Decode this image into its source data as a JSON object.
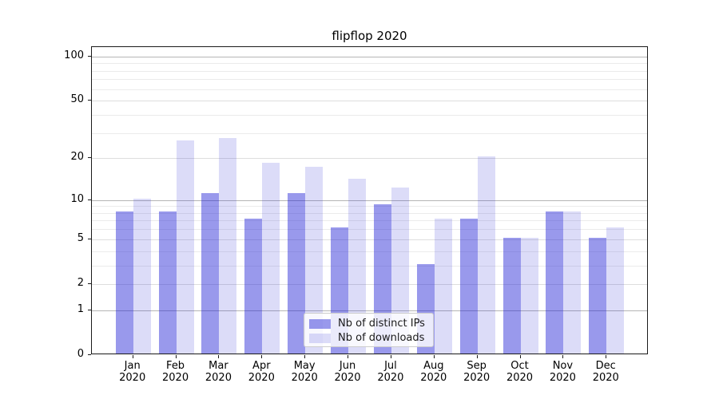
{
  "chart_data": {
    "type": "bar",
    "title": "flipflop 2020",
    "categories": [
      "Jan",
      "Feb",
      "Mar",
      "Apr",
      "May",
      "Jun",
      "Jul",
      "Aug",
      "Sep",
      "Oct",
      "Nov",
      "Dec"
    ],
    "year_label": "2020",
    "series": [
      {
        "name": "Nb of distinct IPs",
        "base_color": "#1c1cd5",
        "alpha": 0.45,
        "values": [
          8,
          8,
          11,
          7,
          11,
          6,
          9,
          3,
          7,
          5,
          8,
          5
        ]
      },
      {
        "name": "Nb of downloads",
        "base_color": "#2424d3",
        "alpha": 0.16,
        "values": [
          10,
          26,
          27,
          18,
          17,
          14,
          12,
          7,
          20,
          5,
          8,
          6
        ]
      }
    ],
    "y_scale": "log1p",
    "ylim": [
      0,
      116
    ],
    "y_ticks": [
      0,
      1,
      2,
      5,
      10,
      20,
      50,
      100
    ],
    "y_ticks_emphasis": [
      1,
      10,
      100
    ],
    "y_minor_gridlines": [
      3,
      4,
      6,
      7,
      8,
      9,
      30,
      40,
      60,
      70,
      80,
      90
    ],
    "legend_position": "lower-center",
    "grid": true,
    "colors": {
      "grid_major": "#b5b5b5",
      "grid_labeled": "#dedede",
      "grid_minor": "#ebebeb",
      "axis": "#1a1a1a",
      "text": "#000000",
      "legend_border": "#cccccc"
    }
  }
}
